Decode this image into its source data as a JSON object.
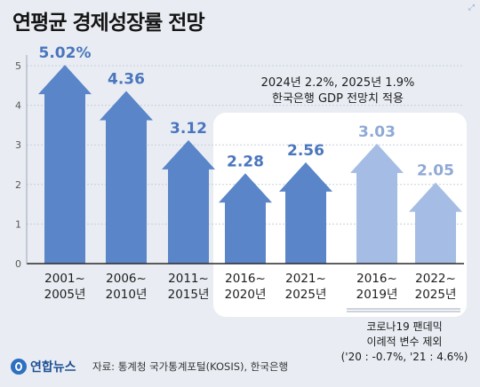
{
  "title": "연평균 경제성장률 전망",
  "source": "자료: 통계청 국가통계포털(KOSIS), 한국은행",
  "logo": "연합뉴스",
  "colors": {
    "actual": "#5a85c8",
    "projection": "#a5bde4",
    "actual_label": "#4a76bd",
    "projection_label": "#8fa9d6",
    "panel": "#ffffff"
  },
  "chart_data": {
    "type": "bar",
    "categories": [
      "2001~\n2005년",
      "2006~\n2010년",
      "2011~\n2015년",
      "2016~\n2020년",
      "2021~\n2025년",
      "2016~\n2019년",
      "2022~\n2025년"
    ],
    "values": [
      5.02,
      4.36,
      3.12,
      2.28,
      2.56,
      3.03,
      2.05
    ],
    "value_labels": [
      "5.02%",
      "4.36",
      "3.12",
      "2.28",
      "2.56",
      "3.03",
      "2.05"
    ],
    "groups": [
      "actual",
      "actual",
      "actual",
      "actual",
      "actual",
      "projection",
      "projection"
    ],
    "ylim": [
      0,
      5.5
    ],
    "yticks": [
      0,
      1,
      2,
      3,
      4,
      5
    ],
    "annotations": {
      "note_top_line1": "2024년 2.2%, 2025년 1.9%",
      "note_top_line2": "한국은행 GDP 전망치 적용",
      "note_bottom_line1": "코로나19 팬데믹",
      "note_bottom_line2": "이례적 변수 제외",
      "note_bottom_line3": "('20 : -0.7%, '21 : 4.6%)"
    }
  }
}
